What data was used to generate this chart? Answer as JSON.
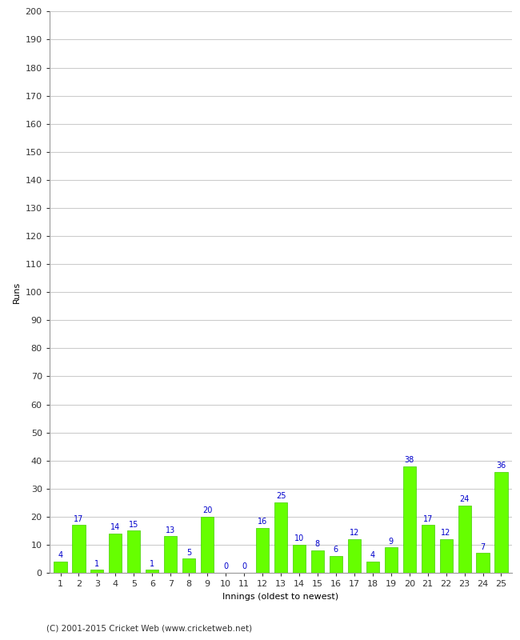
{
  "xlabel": "Innings (oldest to newest)",
  "ylabel": "Runs",
  "values": [
    4,
    17,
    1,
    14,
    15,
    1,
    13,
    5,
    20,
    0,
    0,
    16,
    25,
    10,
    8,
    6,
    12,
    4,
    9,
    38,
    17,
    12,
    24,
    7,
    36
  ],
  "categories": [
    "1",
    "2",
    "3",
    "4",
    "5",
    "6",
    "7",
    "8",
    "9",
    "10",
    "11",
    "12",
    "13",
    "14",
    "15",
    "16",
    "17",
    "18",
    "19",
    "20",
    "21",
    "22",
    "23",
    "24",
    "25"
  ],
  "bar_color": "#66ff00",
  "bar_edge_color": "#44cc00",
  "label_color": "#0000cc",
  "ylim": [
    0,
    200
  ],
  "yticks": [
    0,
    10,
    20,
    30,
    40,
    50,
    60,
    70,
    80,
    90,
    100,
    110,
    120,
    130,
    140,
    150,
    160,
    170,
    180,
    190,
    200
  ],
  "background_color": "#ffffff",
  "grid_color": "#cccccc",
  "footer": "(C) 2001-2015 Cricket Web (www.cricketweb.net)",
  "label_fontsize": 7,
  "axis_tick_fontsize": 8,
  "xlabel_fontsize": 8,
  "ylabel_fontsize": 8,
  "footer_fontsize": 7.5,
  "footer_color": "#333333"
}
